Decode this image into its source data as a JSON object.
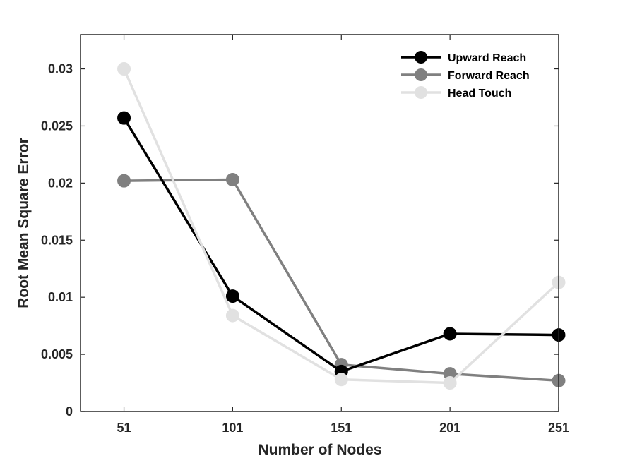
{
  "chart_data": {
    "type": "line",
    "title": "",
    "xlabel": "Number of Nodes",
    "ylabel": "Root Mean Square Error",
    "categories": [
      "51",
      "101",
      "151",
      "201",
      "251"
    ],
    "xlim": [
      31,
      251
    ],
    "ylim": [
      0,
      0.033
    ],
    "yticks": [
      0,
      0.005,
      0.01,
      0.015,
      0.02,
      0.025,
      0.03
    ],
    "ytick_labels": [
      "0",
      "0.005",
      "0.01",
      "0.015",
      "0.02",
      "0.025",
      "0.03"
    ],
    "legend_position": "top-right",
    "grid": false,
    "series": [
      {
        "name": "Upward Reach",
        "color": "#000000",
        "values": [
          0.0257,
          0.0101,
          0.0035,
          0.0068,
          0.0067
        ]
      },
      {
        "name": "Forward Reach",
        "color": "#808080",
        "values": [
          0.0202,
          0.0203,
          0.0041,
          0.0033,
          0.0027
        ]
      },
      {
        "name": "Head Touch",
        "color": "#e1e1e1",
        "values": [
          0.03,
          0.0084,
          0.0028,
          0.0025,
          0.0113
        ]
      }
    ]
  }
}
